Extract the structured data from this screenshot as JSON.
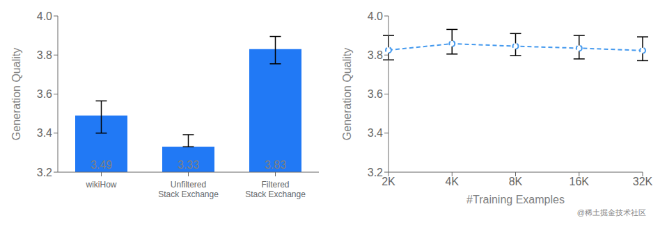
{
  "chart_data": [
    {
      "type": "bar",
      "categories": [
        "wikiHow",
        "Unfiltered\nStack Exchange",
        "Filtered\nStack Exchange"
      ],
      "values": [
        3.49,
        3.33,
        3.83
      ],
      "error_upper": [
        0.075,
        0.062,
        0.065
      ],
      "error_lower": [
        0.09,
        0.0,
        0.075
      ],
      "color": "#2179f5",
      "data_labels": true,
      "ylabel": "Generation Quality",
      "ylim": [
        3.2,
        4.0
      ],
      "yticks": [
        3.2,
        3.4,
        3.6,
        3.8,
        {
          "value": 4.0,
          "label": "4.0"
        }
      ]
    },
    {
      "type": "line",
      "categories": [
        "2K",
        "4K",
        "8K",
        "16K",
        "32K"
      ],
      "values": [
        3.825,
        3.858,
        3.845,
        3.835,
        3.823
      ],
      "error_upper": [
        0.075,
        0.073,
        0.065,
        0.065,
        0.07
      ],
      "error_lower": [
        0.05,
        0.053,
        0.048,
        0.055,
        0.052
      ],
      "color": "#4499ee",
      "line_style": "dashed",
      "marker": "circle",
      "xlabel": "#Training Examples",
      "ylabel": "Generation Quality",
      "ylim": [
        3.2,
        4.0
      ],
      "yticks": [
        3.2,
        3.4,
        3.6,
        3.8,
        {
          "value": 4.0,
          "label": "4.0"
        }
      ],
      "annotation": "@稀土掘金技术社区"
    }
  ]
}
